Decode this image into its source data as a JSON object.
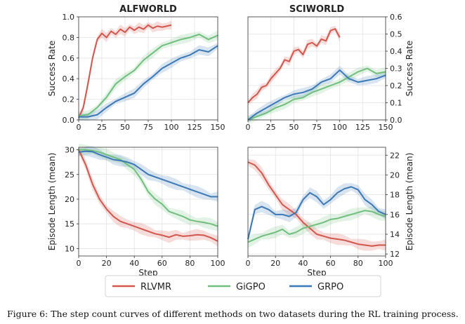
{
  "caption": "Figure 6: The step count curves of different methods on two datasets during the RL training process.",
  "colors": {
    "RLVMR": "#d1574c",
    "GiGPO": "#6fbe7c",
    "GRPO": "#3a78b6"
  },
  "legend": {
    "placement": "bottom-center",
    "entries": [
      "RLVMR",
      "GiGPO",
      "GRPO"
    ]
  },
  "chart_data": [
    {
      "id": "alfworld-success",
      "type": "line",
      "title": "ALFWORLD",
      "xlabel": "",
      "ylabel": "Success Rate",
      "ylabel_side": "left",
      "xlim": [
        0,
        150
      ],
      "ylim": [
        0,
        1.0
      ],
      "xticks": [
        0,
        25,
        50,
        75,
        100,
        125,
        150
      ],
      "yticks": [
        0.0,
        0.2,
        0.4,
        0.6,
        0.8,
        1.0
      ],
      "yticks_text": [
        "0.0",
        "0.2",
        "0.4",
        "0.6",
        "0.8",
        "1.0"
      ],
      "grid": true,
      "series": [
        {
          "name": "RLVMR",
          "x": [
            0,
            5,
            10,
            15,
            20,
            25,
            30,
            35,
            40,
            45,
            50,
            55,
            60,
            65,
            70,
            75,
            80,
            85,
            90,
            95,
            100
          ],
          "y": [
            0.02,
            0.12,
            0.35,
            0.6,
            0.78,
            0.84,
            0.8,
            0.86,
            0.83,
            0.88,
            0.85,
            0.9,
            0.87,
            0.9,
            0.88,
            0.92,
            0.89,
            0.91,
            0.9,
            0.91,
            0.92
          ]
        },
        {
          "name": "GiGPO",
          "x": [
            0,
            10,
            20,
            30,
            40,
            50,
            60,
            70,
            80,
            90,
            100,
            110,
            120,
            130,
            140,
            150
          ],
          "y": [
            0.04,
            0.05,
            0.12,
            0.22,
            0.35,
            0.42,
            0.48,
            0.58,
            0.65,
            0.72,
            0.75,
            0.78,
            0.8,
            0.83,
            0.78,
            0.82
          ]
        },
        {
          "name": "GRPO",
          "x": [
            0,
            10,
            20,
            30,
            40,
            50,
            60,
            70,
            80,
            90,
            100,
            110,
            120,
            130,
            140,
            150
          ],
          "y": [
            0.03,
            0.03,
            0.05,
            0.12,
            0.18,
            0.22,
            0.26,
            0.35,
            0.42,
            0.5,
            0.55,
            0.6,
            0.63,
            0.68,
            0.66,
            0.72
          ]
        }
      ]
    },
    {
      "id": "sciworld-success",
      "type": "line",
      "title": "SCIWORLD",
      "xlabel": "",
      "ylabel": "Success Rate",
      "ylabel_side": "right",
      "xlim": [
        0,
        150
      ],
      "ylim": [
        0,
        0.6
      ],
      "xticks": [
        0,
        25,
        50,
        75,
        100,
        125,
        150
      ],
      "yticks": [
        0.0,
        0.1,
        0.2,
        0.3,
        0.4,
        0.5,
        0.6
      ],
      "yticks_text": [
        "0.0",
        "0.1",
        "0.2",
        "0.3",
        "0.4",
        "0.5",
        "0.6"
      ],
      "grid": true,
      "series": [
        {
          "name": "RLVMR",
          "x": [
            0,
            5,
            10,
            15,
            20,
            25,
            30,
            35,
            40,
            45,
            50,
            55,
            60,
            65,
            70,
            75,
            80,
            85,
            90,
            95,
            100
          ],
          "y": [
            0.1,
            0.13,
            0.15,
            0.19,
            0.2,
            0.24,
            0.27,
            0.3,
            0.35,
            0.34,
            0.4,
            0.41,
            0.38,
            0.44,
            0.45,
            0.43,
            0.47,
            0.46,
            0.52,
            0.53,
            0.48
          ]
        },
        {
          "name": "GiGPO",
          "x": [
            0,
            10,
            20,
            30,
            40,
            50,
            60,
            70,
            80,
            90,
            100,
            110,
            120,
            130,
            140,
            150
          ],
          "y": [
            0.0,
            0.02,
            0.04,
            0.07,
            0.09,
            0.12,
            0.13,
            0.16,
            0.18,
            0.2,
            0.22,
            0.25,
            0.28,
            0.3,
            0.27,
            0.28
          ]
        },
        {
          "name": "GRPO",
          "x": [
            0,
            10,
            20,
            30,
            40,
            50,
            60,
            70,
            80,
            90,
            100,
            110,
            120,
            130,
            140,
            150
          ],
          "y": [
            0.0,
            0.04,
            0.07,
            0.1,
            0.13,
            0.15,
            0.16,
            0.18,
            0.22,
            0.24,
            0.29,
            0.24,
            0.22,
            0.23,
            0.24,
            0.26
          ]
        }
      ]
    },
    {
      "id": "alfworld-length",
      "type": "line",
      "title": "",
      "xlabel": "Step",
      "ylabel": "Episode Length (mean)",
      "ylabel_side": "left",
      "xlim": [
        0,
        100
      ],
      "ylim": [
        8.5,
        30.5
      ],
      "xticks": [
        0,
        20,
        40,
        60,
        80,
        100
      ],
      "yticks": [
        10,
        15,
        20,
        25,
        30
      ],
      "yticks_text": [
        "10",
        "15",
        "20",
        "25",
        "30"
      ],
      "grid": true,
      "series": [
        {
          "name": "RLVMR",
          "x": [
            0,
            5,
            10,
            15,
            20,
            25,
            30,
            35,
            40,
            45,
            50,
            55,
            60,
            65,
            70,
            75,
            80,
            85,
            90,
            95,
            100
          ],
          "y": [
            30,
            27,
            23,
            20,
            18,
            16.5,
            15.5,
            15,
            14.5,
            14,
            13.5,
            13,
            12.7,
            12.3,
            12.8,
            12.5,
            12.6,
            12.8,
            12.7,
            12.2,
            11.5
          ]
        },
        {
          "name": "GiGPO",
          "x": [
            0,
            5,
            10,
            15,
            20,
            25,
            30,
            35,
            40,
            45,
            50,
            55,
            60,
            65,
            70,
            75,
            80,
            85,
            90,
            95,
            100
          ],
          "y": [
            30,
            30,
            29.8,
            29.5,
            29,
            28.5,
            28,
            27,
            26,
            24,
            21.5,
            20,
            19,
            17.5,
            17,
            16.5,
            15.8,
            15.5,
            15.3,
            15,
            14.5
          ]
        },
        {
          "name": "GRPO",
          "x": [
            0,
            5,
            10,
            15,
            20,
            25,
            30,
            35,
            40,
            45,
            50,
            55,
            60,
            65,
            70,
            75,
            80,
            85,
            90,
            95,
            100
          ],
          "y": [
            29.5,
            29.7,
            29.6,
            29,
            28.5,
            28,
            27.8,
            27.5,
            27,
            26,
            25,
            24.5,
            24,
            23.5,
            23,
            22.5,
            22,
            21.5,
            21,
            20.5,
            20.5
          ]
        }
      ]
    },
    {
      "id": "sciworld-length",
      "type": "line",
      "title": "",
      "xlabel": "Step",
      "ylabel": "Episode Length (mean)",
      "ylabel_side": "right",
      "xlim": [
        0,
        100
      ],
      "ylim": [
        11.8,
        22.8
      ],
      "xticks": [
        0,
        20,
        40,
        60,
        80,
        100
      ],
      "yticks": [
        12,
        14,
        16,
        18,
        20,
        22
      ],
      "yticks_text": [
        "12",
        "14",
        "16",
        "18",
        "20",
        "22"
      ],
      "grid": true,
      "series": [
        {
          "name": "RLVMR",
          "x": [
            0,
            5,
            10,
            15,
            20,
            25,
            30,
            35,
            40,
            45,
            50,
            55,
            60,
            65,
            70,
            75,
            80,
            85,
            90,
            95,
            100
          ],
          "y": [
            21.3,
            21,
            20.2,
            19,
            18,
            17,
            16.5,
            16,
            15.2,
            14.6,
            14,
            13.8,
            13.6,
            13.5,
            13.4,
            13.2,
            13,
            12.9,
            12.8,
            12.9,
            12.9
          ]
        },
        {
          "name": "GiGPO",
          "x": [
            0,
            5,
            10,
            15,
            20,
            25,
            30,
            35,
            40,
            45,
            50,
            55,
            60,
            65,
            70,
            75,
            80,
            85,
            90,
            95,
            100
          ],
          "y": [
            13.2,
            13.5,
            13.8,
            14,
            14.2,
            14.5,
            14,
            14.2,
            14.6,
            14.8,
            15,
            15.2,
            15.5,
            15.6,
            15.8,
            16,
            16.2,
            16.4,
            16.3,
            16,
            15.8
          ]
        },
        {
          "name": "GRPO",
          "x": [
            0,
            5,
            10,
            15,
            20,
            25,
            30,
            35,
            40,
            45,
            50,
            55,
            60,
            65,
            70,
            75,
            80,
            85,
            90,
            95,
            100
          ],
          "y": [
            13.5,
            16.5,
            16.8,
            16.5,
            16,
            16,
            15.8,
            16.2,
            17.5,
            18.2,
            17.8,
            17,
            17.5,
            18.2,
            18.6,
            18.8,
            18.5,
            17.5,
            17,
            16.3,
            16
          ]
        }
      ]
    }
  ]
}
